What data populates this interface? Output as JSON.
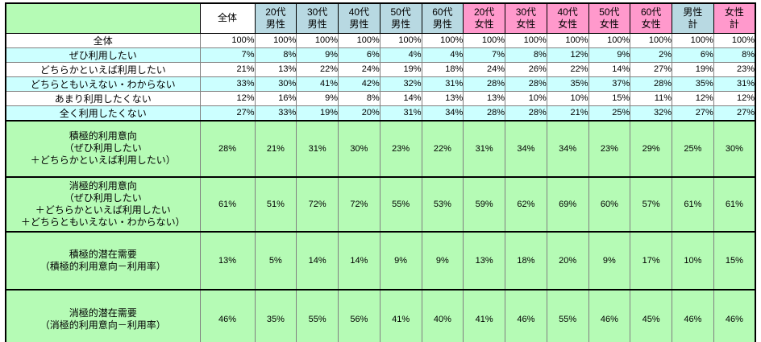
{
  "colors": {
    "section_green": "#b5fbb5",
    "zebra_cyan": "#ccffff",
    "male_blue": "#b8d9e2",
    "female_pink": "#ff99cc",
    "grid_gray": "#808080",
    "border_black": "#000000"
  },
  "table": {
    "corner": "",
    "header": [
      {
        "label": "全体",
        "group": "overall"
      },
      {
        "label": "20代\n男性",
        "group": "male"
      },
      {
        "label": "30代\n男性",
        "group": "male"
      },
      {
        "label": "40代\n男性",
        "group": "male"
      },
      {
        "label": "50代\n男性",
        "group": "male"
      },
      {
        "label": "60代\n男性",
        "group": "male"
      },
      {
        "label": "20代\n女性",
        "group": "female"
      },
      {
        "label": "30代\n女性",
        "group": "female"
      },
      {
        "label": "40代\n女性",
        "group": "female"
      },
      {
        "label": "50代\n女性",
        "group": "female"
      },
      {
        "label": "60代\n女性",
        "group": "female"
      },
      {
        "label": "男性\n計",
        "group": "male"
      },
      {
        "label": "女性\n計",
        "group": "female"
      }
    ],
    "rows": [
      {
        "label": "全体",
        "zebra": "white",
        "values": [
          "100%",
          "100%",
          "100%",
          "100%",
          "100%",
          "100%",
          "100%",
          "100%",
          "100%",
          "100%",
          "100%",
          "100%",
          "100%"
        ]
      },
      {
        "label": "ぜひ利用したい",
        "zebra": "cyan",
        "values": [
          "7%",
          "8%",
          "9%",
          "6%",
          "4%",
          "4%",
          "7%",
          "8%",
          "12%",
          "9%",
          "2%",
          "6%",
          "8%"
        ]
      },
      {
        "label": "どちらかといえば利用したい",
        "zebra": "white",
        "values": [
          "21%",
          "13%",
          "22%",
          "24%",
          "19%",
          "18%",
          "24%",
          "26%",
          "22%",
          "14%",
          "27%",
          "19%",
          "23%"
        ]
      },
      {
        "label": "どちらともいえない・わからない",
        "zebra": "cyan",
        "values": [
          "33%",
          "30%",
          "41%",
          "42%",
          "32%",
          "31%",
          "28%",
          "28%",
          "35%",
          "37%",
          "28%",
          "35%",
          "31%"
        ]
      },
      {
        "label": "あまり利用したくない",
        "zebra": "white",
        "values": [
          "12%",
          "16%",
          "9%",
          "8%",
          "14%",
          "13%",
          "13%",
          "10%",
          "10%",
          "15%",
          "11%",
          "12%",
          "12%"
        ]
      },
      {
        "label": "全く利用したくない",
        "zebra": "cyan",
        "values": [
          "27%",
          "33%",
          "19%",
          "20%",
          "31%",
          "34%",
          "28%",
          "28%",
          "21%",
          "25%",
          "32%",
          "27%",
          "27%"
        ]
      }
    ],
    "sections": [
      {
        "label": "積極的利用意向\n（ぜひ利用したい\n＋どちらかといえば利用したい）",
        "values": [
          "28%",
          "21%",
          "31%",
          "30%",
          "23%",
          "22%",
          "31%",
          "34%",
          "34%",
          "23%",
          "29%",
          "25%",
          "30%"
        ]
      },
      {
        "label": "消極的利用意向\n（ぜひ利用したい\n＋どちらかといえば利用したい\n＋どちらともいえない・わからない）",
        "values": [
          "61%",
          "51%",
          "72%",
          "72%",
          "55%",
          "53%",
          "59%",
          "62%",
          "69%",
          "60%",
          "57%",
          "61%",
          "61%"
        ]
      },
      {
        "label": "積極的潜在需要\n（積極的利用意向－利用率）",
        "values": [
          "13%",
          "5%",
          "14%",
          "14%",
          "9%",
          "9%",
          "13%",
          "18%",
          "20%",
          "9%",
          "17%",
          "10%",
          "15%"
        ]
      },
      {
        "label": "消極的潜在需要\n（消極的利用意向－利用率）",
        "values": [
          "46%",
          "35%",
          "55%",
          "56%",
          "41%",
          "40%",
          "41%",
          "46%",
          "55%",
          "46%",
          "45%",
          "46%",
          "46%"
        ]
      }
    ]
  },
  "chart_data": {
    "type": "table",
    "title": "",
    "unit": "%",
    "categories": [
      "全体",
      "20代男性",
      "30代男性",
      "40代男性",
      "50代男性",
      "60代男性",
      "20代女性",
      "30代女性",
      "40代女性",
      "50代女性",
      "60代女性",
      "男性計",
      "女性計"
    ],
    "series": [
      {
        "name": "全体",
        "values": [
          100,
          100,
          100,
          100,
          100,
          100,
          100,
          100,
          100,
          100,
          100,
          100,
          100
        ]
      },
      {
        "name": "ぜひ利用したい",
        "values": [
          7,
          8,
          9,
          6,
          4,
          4,
          7,
          8,
          12,
          9,
          2,
          6,
          8
        ]
      },
      {
        "name": "どちらかといえば利用したい",
        "values": [
          21,
          13,
          22,
          24,
          19,
          18,
          24,
          26,
          22,
          14,
          27,
          19,
          23
        ]
      },
      {
        "name": "どちらともいえない・わからない",
        "values": [
          33,
          30,
          41,
          42,
          32,
          31,
          28,
          28,
          35,
          37,
          28,
          35,
          31
        ]
      },
      {
        "name": "あまり利用したくない",
        "values": [
          12,
          16,
          9,
          8,
          14,
          13,
          13,
          10,
          10,
          15,
          11,
          12,
          12
        ]
      },
      {
        "name": "全く利用したくない",
        "values": [
          27,
          33,
          19,
          20,
          31,
          34,
          28,
          28,
          21,
          25,
          32,
          27,
          27
        ]
      },
      {
        "name": "積極的利用意向（ぜひ利用したい＋どちらかといえば利用したい）",
        "values": [
          28,
          21,
          31,
          30,
          23,
          22,
          31,
          34,
          34,
          23,
          29,
          25,
          30
        ]
      },
      {
        "name": "消極的利用意向（ぜひ利用したい＋どちらかといえば利用したい＋どちらともいえない・わからない）",
        "values": [
          61,
          51,
          72,
          72,
          55,
          53,
          59,
          62,
          69,
          60,
          57,
          61,
          61
        ]
      },
      {
        "name": "積極的潜在需要（積極的利用意向－利用率）",
        "values": [
          13,
          5,
          14,
          14,
          9,
          9,
          13,
          18,
          20,
          9,
          17,
          10,
          15
        ]
      },
      {
        "name": "消極的潜在需要（消極的利用意向－利用率）",
        "values": [
          46,
          35,
          55,
          56,
          41,
          40,
          41,
          46,
          55,
          46,
          45,
          46,
          46
        ]
      }
    ]
  }
}
